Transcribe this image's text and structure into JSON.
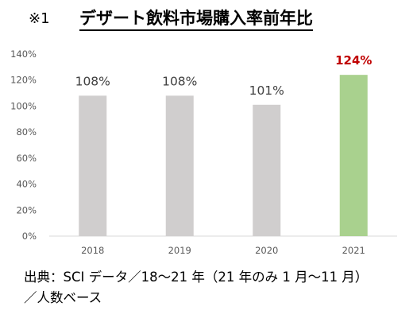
{
  "header": {
    "mark": "※1",
    "title": "デザート飲料市場購入率前年比"
  },
  "chart_data": {
    "type": "bar",
    "categories": [
      "2018",
      "2019",
      "2020",
      "2021"
    ],
    "values": [
      108,
      108,
      101,
      124
    ],
    "data_labels": [
      "108%",
      "108%",
      "101%",
      "124%"
    ],
    "y_ticks": [
      "0%",
      "20%",
      "40%",
      "60%",
      "80%",
      "100%",
      "120%",
      "140%"
    ],
    "ylim": [
      0,
      140
    ],
    "grid": false,
    "colors": {
      "default_bar": "#d0cece",
      "highlight_bar": "#a9d18e",
      "highlight_label": "#c00000",
      "label": "#404040",
      "axis_text": "#595959"
    },
    "highlight_index": 3
  },
  "footer": {
    "source_line1": "出典：SCI データ／18～21 年（21 年のみ 1 月～11 月）",
    "source_line2": "／人数ベース"
  }
}
